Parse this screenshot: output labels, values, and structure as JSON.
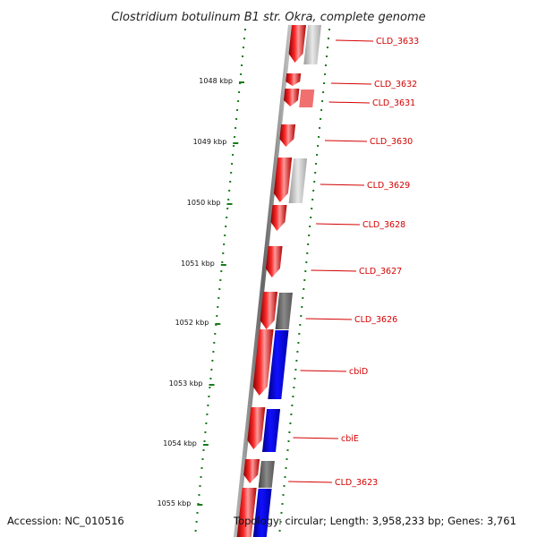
{
  "title": "Clostridium botulinum B1 str. Okra, complete genome",
  "footer": {
    "accession": "Accession: NC_010516",
    "summary": "Topology: circular; Length: 3,958,233 bp; Genes: 3,761"
  },
  "colors": {
    "forward_gene": "#e00000",
    "reverse_gene_grey": "#8a8a8a",
    "reverse_gene_light": "#c8c8c8",
    "blue_gene": "#0000dd",
    "label": "#d40000",
    "scale_dots": "#1a7a1a",
    "backbone": "#777777"
  },
  "scale_labels": [
    "1048 kbp",
    "1049 kbp",
    "1050 kbp",
    "1051 kbp",
    "1052 kbp",
    "1053 kbp",
    "1054 kbp",
    "1055 kbp"
  ],
  "gene_labels": [
    "CLD_3633",
    "CLD_3632",
    "CLD_3631",
    "CLD_3630",
    "CLD_3629",
    "CLD_3628",
    "CLD_3627",
    "CLD_3626",
    "cbiD",
    "cbiE",
    "CLD_3623"
  ]
}
